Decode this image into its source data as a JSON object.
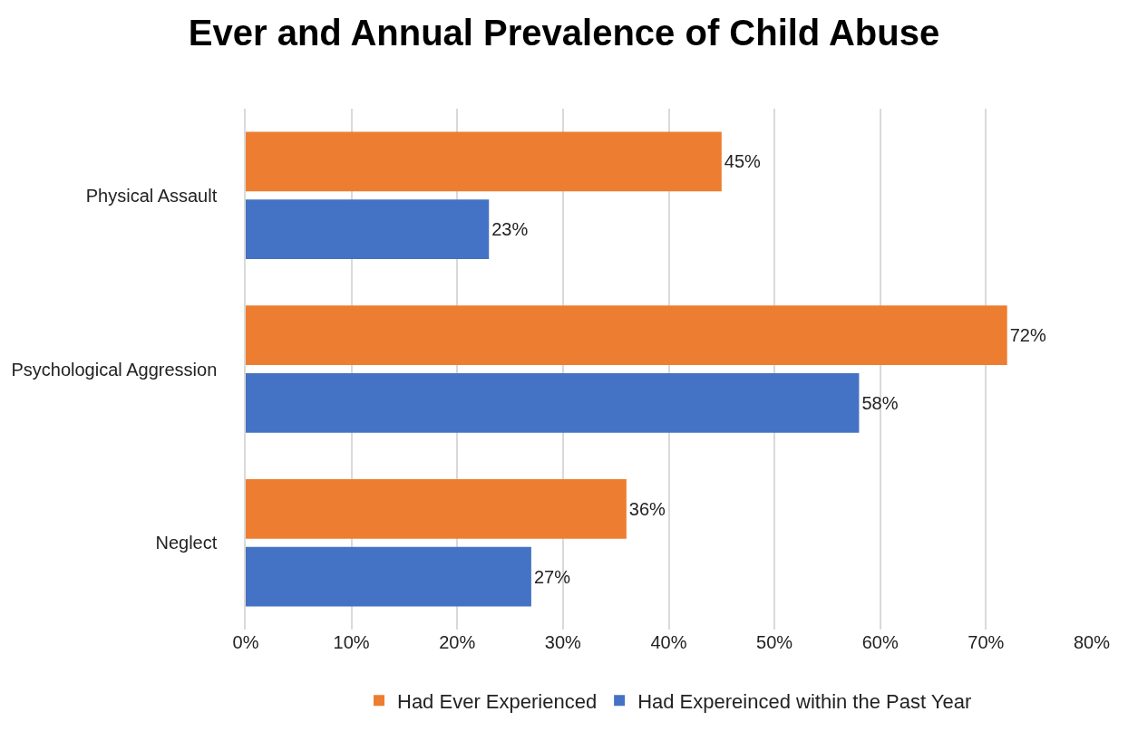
{
  "chart_data": {
    "type": "bar",
    "orientation": "horizontal",
    "title": "Ever and Annual Prevalence of Child Abuse",
    "categories": [
      "Physical Assault",
      "Psychological Aggression",
      "Neglect"
    ],
    "series": [
      {
        "name": "Had Ever Experienced",
        "color": "#ed7d31",
        "values": [
          45,
          72,
          36
        ],
        "value_labels": [
          "45%",
          "72%",
          "36%"
        ]
      },
      {
        "name": "Had Expereinced within the Past Year",
        "color": "#4472c4",
        "values": [
          23,
          58,
          27
        ],
        "value_labels": [
          "23%",
          "58%",
          "27%"
        ]
      }
    ],
    "xlim": [
      0,
      80
    ],
    "xticks": [
      {
        "value": 0,
        "label": "0%"
      },
      {
        "value": 10,
        "label": "10%"
      },
      {
        "value": 20,
        "label": "20%"
      },
      {
        "value": 30,
        "label": "30%"
      },
      {
        "value": 40,
        "label": "40%"
      },
      {
        "value": 50,
        "label": "50%"
      },
      {
        "value": 60,
        "label": "60%"
      },
      {
        "value": 70,
        "label": "70%"
      },
      {
        "value": 80,
        "label": "80%"
      }
    ],
    "grid": "x",
    "legend": "bottom"
  }
}
